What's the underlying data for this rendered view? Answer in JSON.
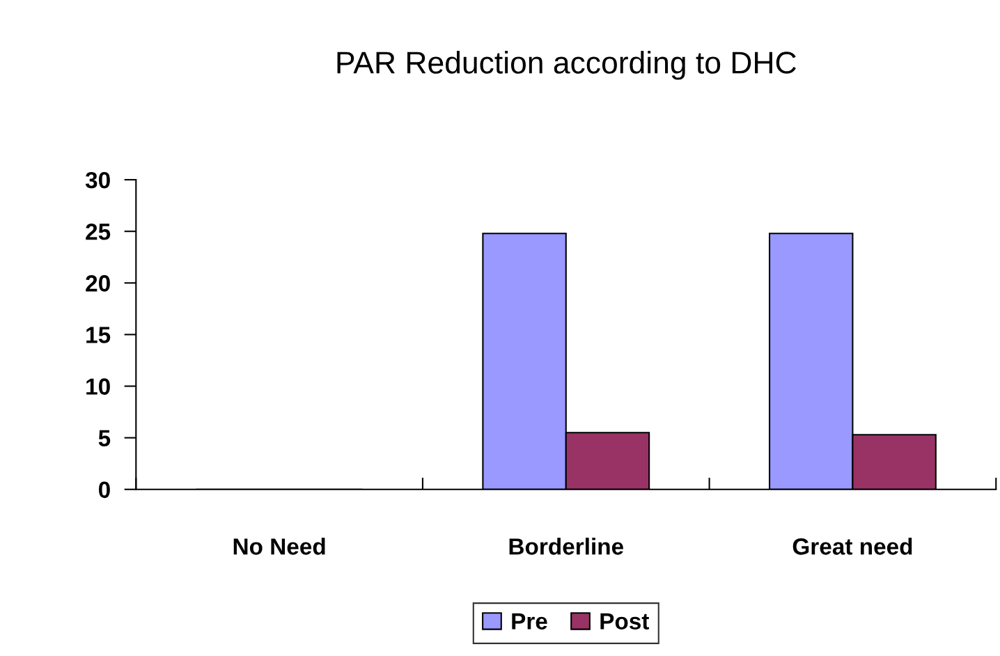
{
  "chart_data": {
    "type": "bar",
    "title": "PAR Reduction according to DHC",
    "categories": [
      "No Need",
      "Borderline",
      "Great need"
    ],
    "series": [
      {
        "name": "Pre",
        "color": "#9999ff",
        "values": [
          0,
          24.8,
          24.8
        ]
      },
      {
        "name": "Post",
        "color": "#993366",
        "values": [
          0,
          5.5,
          5.3
        ]
      }
    ],
    "ylim": [
      0,
      30
    ],
    "yticks": [
      0,
      5,
      10,
      15,
      20,
      25,
      30
    ],
    "grid": false,
    "legend": "bottom"
  }
}
